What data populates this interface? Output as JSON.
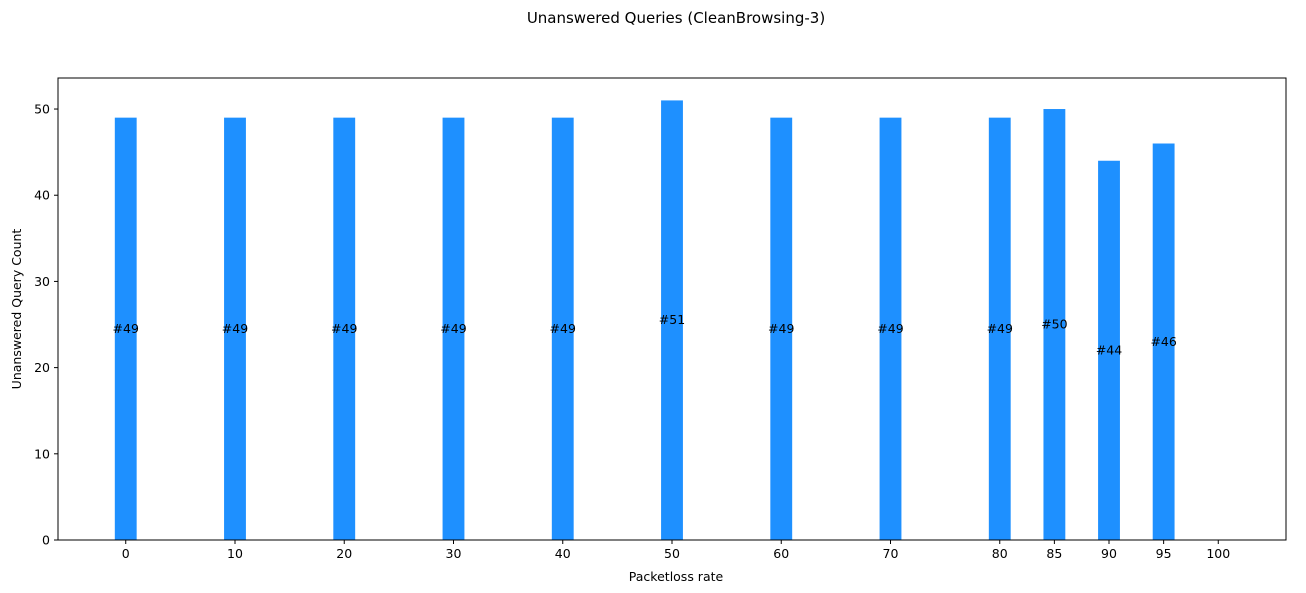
{
  "chart_data": {
    "type": "bar",
    "title": "Unanswered Queries (CleanBrowsing-3)",
    "xlabel": "Packetloss rate",
    "ylabel": "Unanswered Query Count",
    "x": [
      0,
      10,
      20,
      30,
      40,
      50,
      60,
      70,
      80,
      85,
      90,
      95,
      100
    ],
    "values": [
      49,
      49,
      49,
      49,
      49,
      51,
      49,
      49,
      49,
      50,
      44,
      46,
      0
    ],
    "labels": [
      "#49",
      "#49",
      "#49",
      "#49",
      "#49",
      "#51",
      "#49",
      "#49",
      "#49",
      "#50",
      "#44",
      "#46",
      ""
    ],
    "xticks": [
      "0",
      "10",
      "20",
      "30",
      "40",
      "50",
      "60",
      "70",
      "80",
      "85",
      "90",
      "95",
      "100"
    ],
    "yticks": [
      "0",
      "10",
      "20",
      "30",
      "40",
      "50"
    ],
    "xlim": [
      -6.2,
      106.2
    ],
    "ylim": [
      0,
      53.6
    ],
    "bar_width": 2,
    "color": "#1e90ff",
    "grid": false,
    "legend": "none"
  }
}
